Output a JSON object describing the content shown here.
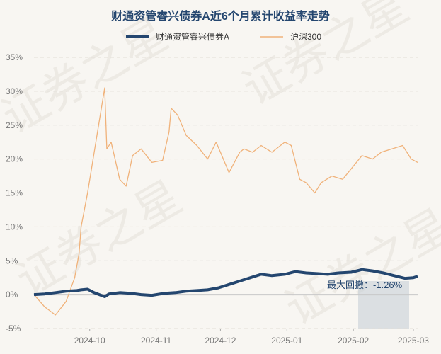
{
  "chart_data": {
    "type": "line",
    "title": "财通资管睿兴债券A近6个月累计收益率走势",
    "xlabel": "",
    "ylabel": "",
    "ylim": [
      -5,
      35
    ],
    "yticks": [
      "35%",
      "30%",
      "25%",
      "20%",
      "15%",
      "10%",
      "5%",
      "0%",
      "-5%"
    ],
    "xticks": [
      "2024-10",
      "2024-11",
      "2024-12",
      "2025-01",
      "2025-02",
      "2025-03"
    ],
    "grid": true,
    "legend": "top-center",
    "annotation": "最大回撤：-1.26%",
    "series": [
      {
        "name": "财通资管睿兴债券A",
        "color": "#24466f",
        "x": [
          "2024-09-05",
          "2024-09-10",
          "2024-09-15",
          "2024-09-20",
          "2024-09-25",
          "2024-09-27",
          "2024-09-30",
          "2024-10-03",
          "2024-10-08",
          "2024-10-10",
          "2024-10-15",
          "2024-10-20",
          "2024-10-25",
          "2024-10-30",
          "2024-11-05",
          "2024-11-10",
          "2024-11-15",
          "2024-11-20",
          "2024-11-25",
          "2024-11-30",
          "2024-12-05",
          "2024-12-10",
          "2024-12-15",
          "2024-12-20",
          "2024-12-25",
          "2024-12-31",
          "2025-01-05",
          "2025-01-10",
          "2025-01-15",
          "2025-01-20",
          "2025-01-25",
          "2025-01-31",
          "2025-02-05",
          "2025-02-10",
          "2025-02-15",
          "2025-02-20",
          "2025-02-25",
          "2025-03-01",
          "2025-03-03"
        ],
        "values": [
          0.0,
          0.1,
          0.3,
          0.5,
          0.6,
          0.7,
          0.8,
          0.3,
          -0.3,
          0.1,
          0.3,
          0.2,
          0.0,
          -0.1,
          0.2,
          0.3,
          0.5,
          0.6,
          0.7,
          1.0,
          1.5,
          2.0,
          2.5,
          3.0,
          2.8,
          3.0,
          3.4,
          3.2,
          3.1,
          3.0,
          3.2,
          3.3,
          3.7,
          3.5,
          3.2,
          2.8,
          2.4,
          2.5,
          2.7
        ]
      },
      {
        "name": "沪深300",
        "color": "#f0b27a",
        "x": [
          "2024-09-05",
          "2024-09-10",
          "2024-09-15",
          "2024-09-20",
          "2024-09-24",
          "2024-09-26",
          "2024-09-27",
          "2024-09-30",
          "2024-10-08",
          "2024-10-09",
          "2024-10-11",
          "2024-10-15",
          "2024-10-18",
          "2024-10-21",
          "2024-10-25",
          "2024-10-30",
          "2024-11-04",
          "2024-11-07",
          "2024-11-08",
          "2024-11-11",
          "2024-11-15",
          "2024-11-20",
          "2024-11-25",
          "2024-11-29",
          "2024-12-05",
          "2024-12-10",
          "2024-12-12",
          "2024-12-16",
          "2024-12-20",
          "2024-12-25",
          "2024-12-31",
          "2025-01-03",
          "2025-01-07",
          "2025-01-10",
          "2025-01-14",
          "2025-01-17",
          "2025-01-22",
          "2025-01-27",
          "2025-02-05",
          "2025-02-10",
          "2025-02-14",
          "2025-02-19",
          "2025-02-24",
          "2025-02-28",
          "2025-03-03"
        ],
        "values": [
          0.0,
          -1.8,
          -3.0,
          -1.0,
          2.5,
          6.0,
          10.0,
          15.0,
          30.5,
          21.5,
          22.5,
          17.0,
          16.0,
          20.5,
          21.5,
          19.5,
          19.8,
          24.0,
          27.5,
          26.5,
          23.5,
          22.0,
          20.0,
          22.5,
          18.0,
          21.0,
          21.5,
          21.0,
          22.0,
          21.0,
          22.5,
          22.0,
          17.0,
          16.5,
          15.0,
          16.5,
          17.5,
          17.0,
          20.5,
          20.0,
          21.0,
          21.5,
          22.0,
          20.0,
          19.5
        ]
      }
    ]
  }
}
